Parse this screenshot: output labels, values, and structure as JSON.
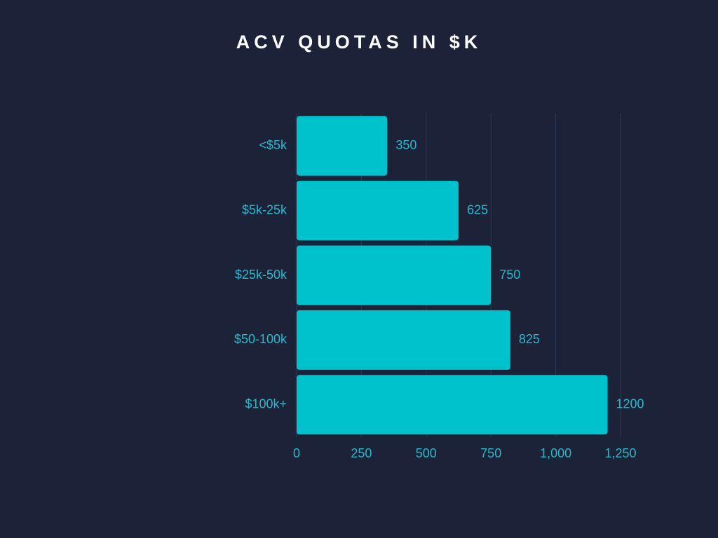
{
  "chart_data": {
    "type": "bar",
    "orientation": "horizontal",
    "title": "ACV QUOTAS IN $K",
    "categories": [
      "<$5k",
      "$5k-25k",
      "$25k-50k",
      "$50-100k",
      "$100k+"
    ],
    "values": [
      350,
      625,
      750,
      825,
      1200
    ],
    "color": "#00c2cc",
    "xlim": [
      0,
      1250
    ],
    "xticks": [
      0,
      250,
      500,
      750,
      {
        "value": 1000,
        "label": "1,000"
      },
      {
        "value": 1250,
        "label": "1,250"
      }
    ],
    "grid": true
  }
}
